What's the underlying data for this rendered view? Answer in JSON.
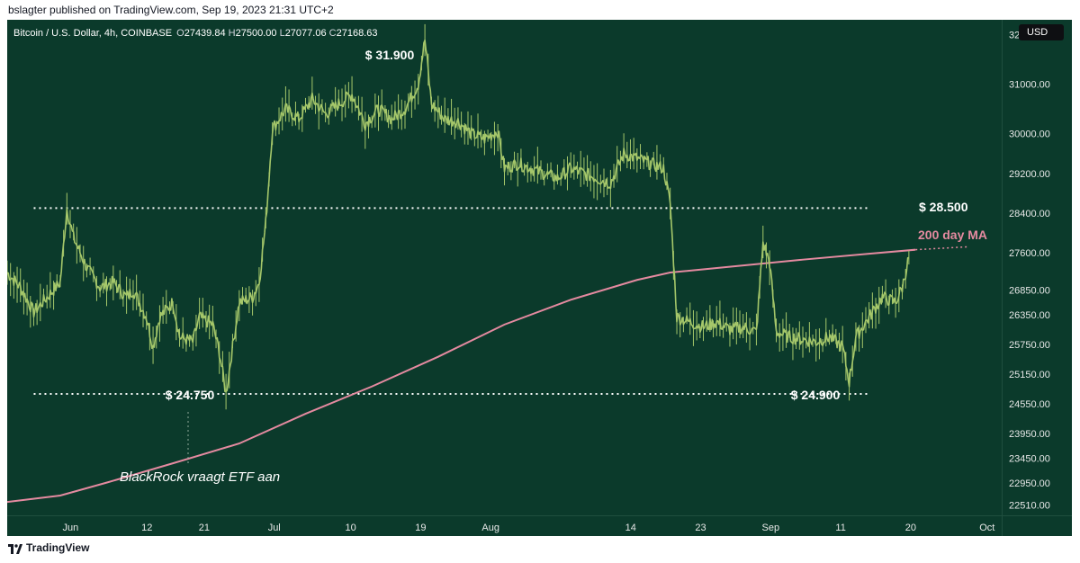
{
  "header": {
    "publisher_line": "bslagter published on TradingView.com, Sep 19, 2023 21:31 UTC+2"
  },
  "legend": {
    "symbol": "Bitcoin / U.S. Dollar, 4h, COINBASE",
    "open_label": "O",
    "open": "27439.84",
    "high_label": "H",
    "high": "27500.00",
    "low_label": "L",
    "low": "27077.06",
    "close_label": "C",
    "close": "27168.63"
  },
  "currency": "USD",
  "footer": {
    "brand": "TradingView"
  },
  "colors": {
    "background": "#0b3a2b",
    "candles": "#a5c76a",
    "ma": "#e48aa0",
    "levels": "#ffffff"
  },
  "chart_data": {
    "type": "line",
    "title": "Bitcoin / U.S. Dollar, 4h, COINBASE",
    "x_axis_labels": [
      "Jun",
      "12",
      "21",
      "Jul",
      "10",
      "19",
      "Aug",
      "14",
      "23",
      "Sep",
      "11",
      "20",
      "Oct"
    ],
    "y_axis_labels": [
      "32000.00",
      "31000.00",
      "30000.00",
      "29200.00",
      "28400.00",
      "27600.00",
      "26850.00",
      "26350.00",
      "25750.00",
      "25150.00",
      "24550.00",
      "23950.00",
      "23450.00",
      "22950.00",
      "22510.00"
    ],
    "ylim": [
      22300,
      32300
    ],
    "x_range_days": [
      0,
      150
    ],
    "series": [
      {
        "name": "BTC/USD 4h price",
        "points": [
          [
            0,
            27200
          ],
          [
            2,
            26900
          ],
          [
            4,
            26400
          ],
          [
            6,
            26700
          ],
          [
            8,
            27000
          ],
          [
            9,
            28500
          ],
          [
            10,
            27900
          ],
          [
            12,
            27300
          ],
          [
            14,
            26900
          ],
          [
            16,
            27000
          ],
          [
            18,
            26700
          ],
          [
            19,
            26850
          ],
          [
            21,
            26300
          ],
          [
            22,
            25700
          ],
          [
            23,
            26300
          ],
          [
            25,
            26600
          ],
          [
            26,
            25900
          ],
          [
            28,
            25800
          ],
          [
            29,
            26300
          ],
          [
            31,
            26150
          ],
          [
            32,
            25600
          ],
          [
            33,
            24750
          ],
          [
            34,
            25700
          ],
          [
            35,
            26600
          ],
          [
            37,
            26700
          ],
          [
            38,
            27000
          ],
          [
            39,
            28200
          ],
          [
            40,
            30100
          ],
          [
            42,
            30500
          ],
          [
            44,
            30300
          ],
          [
            46,
            30700
          ],
          [
            48,
            30400
          ],
          [
            50,
            30600
          ],
          [
            52,
            30800
          ],
          [
            54,
            30200
          ],
          [
            56,
            30500
          ],
          [
            58,
            30300
          ],
          [
            60,
            30500
          ],
          [
            62,
            31000
          ],
          [
            63,
            31900
          ],
          [
            64,
            30600
          ],
          [
            66,
            30300
          ],
          [
            68,
            30250
          ],
          [
            70,
            30000
          ],
          [
            72,
            29900
          ],
          [
            74,
            30050
          ],
          [
            75,
            29300
          ],
          [
            77,
            29400
          ],
          [
            79,
            29300
          ],
          [
            81,
            29200
          ],
          [
            83,
            29100
          ],
          [
            85,
            29300
          ],
          [
            87,
            29200
          ],
          [
            89,
            29100
          ],
          [
            91,
            29000
          ],
          [
            93,
            29600
          ],
          [
            95,
            29500
          ],
          [
            97,
            29400
          ],
          [
            99,
            29300
          ],
          [
            100,
            28600
          ],
          [
            101,
            26300
          ],
          [
            103,
            26200
          ],
          [
            105,
            26100
          ],
          [
            107,
            26200
          ],
          [
            109,
            26050
          ],
          [
            111,
            26100
          ],
          [
            113,
            26000
          ],
          [
            114,
            27800
          ],
          [
            115,
            27400
          ],
          [
            116,
            26000
          ],
          [
            118,
            25900
          ],
          [
            120,
            25850
          ],
          [
            122,
            25800
          ],
          [
            124,
            25900
          ],
          [
            126,
            25700
          ],
          [
            127,
            25000
          ],
          [
            128,
            25900
          ],
          [
            130,
            26300
          ],
          [
            132,
            26700
          ],
          [
            134,
            26600
          ],
          [
            135,
            26900
          ],
          [
            136,
            27500
          ]
        ]
      },
      {
        "name": "200 day MA",
        "points": [
          [
            0,
            22570
          ],
          [
            8,
            22700
          ],
          [
            15,
            22960
          ],
          [
            25,
            23350
          ],
          [
            35,
            23750
          ],
          [
            45,
            24350
          ],
          [
            55,
            24900
          ],
          [
            65,
            25500
          ],
          [
            75,
            26150
          ],
          [
            85,
            26650
          ],
          [
            95,
            27050
          ],
          [
            100,
            27200
          ],
          [
            110,
            27330
          ],
          [
            120,
            27460
          ],
          [
            130,
            27580
          ],
          [
            137,
            27660
          ]
        ],
        "projection_points": [
          [
            137,
            27660
          ],
          [
            145,
            27720
          ]
        ]
      }
    ],
    "levels": [
      {
        "label": "$ 28.500",
        "value": 28500
      },
      {
        "label": "$ 24.750",
        "value": 24750
      }
    ],
    "annotations": {
      "high_label": "$ 31.900",
      "low_june_label": "$ 24.750",
      "low_sep_label": "$ 24.900",
      "resistance_label": "$ 28.500",
      "ma_label": "200 day MA",
      "event_label": "BlackRock vraagt ETF aan"
    }
  }
}
